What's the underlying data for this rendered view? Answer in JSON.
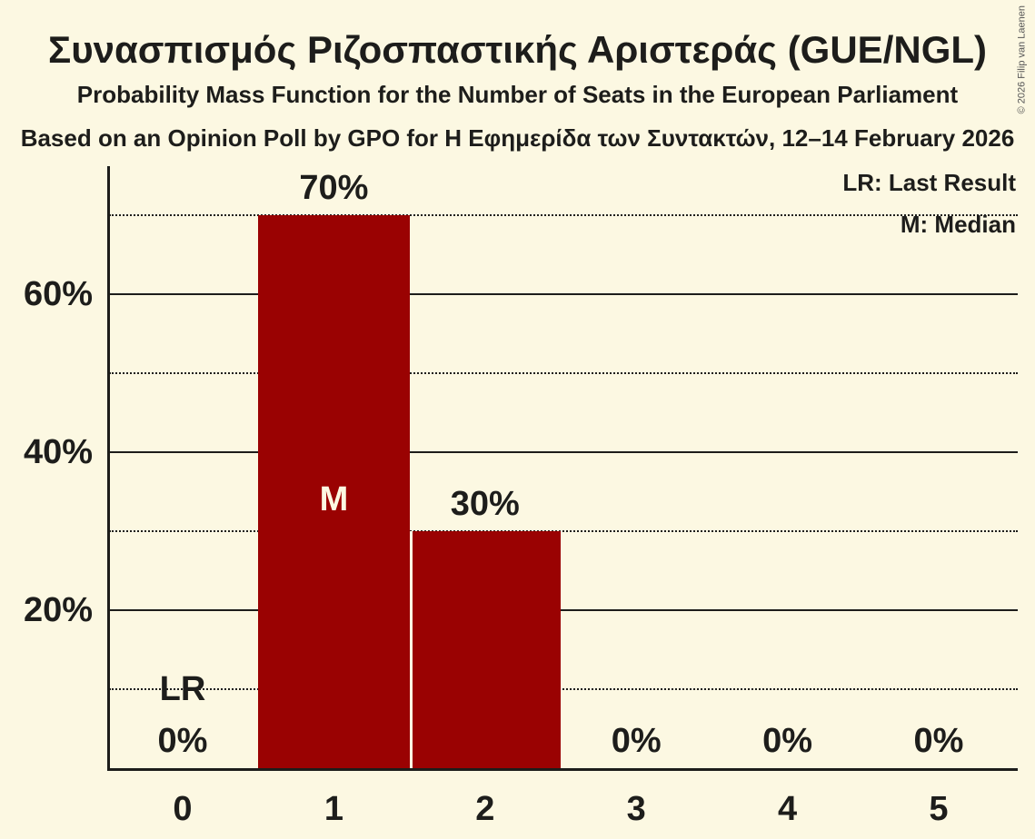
{
  "colors": {
    "background": "#FCF8E2",
    "bar": "#9A0202",
    "text": "#1D1D1B",
    "copyright_text": "#555555"
  },
  "chart_data": {
    "type": "bar",
    "title": "Συνασπισμός Ριζοσπαστικής Αριστεράς (GUE/NGL)",
    "subtitle": "Probability Mass Function for the Number of Seats in the European Parliament",
    "source_line": "Based on an Opinion Poll by GPO for Η Εφημερίδα των Συντακτών, 12–14 February 2026",
    "copyright": "© 2026 Filip van Laenen",
    "categories": [
      "0",
      "1",
      "2",
      "3",
      "4",
      "5"
    ],
    "values": [
      0,
      70,
      30,
      0,
      0,
      0
    ],
    "bar_labels": [
      "0%",
      "70%",
      "30%",
      "0%",
      "0%",
      "0%"
    ],
    "xlabel": "",
    "ylabel": "",
    "ylim": [
      0,
      76
    ],
    "yticks_solid": [
      {
        "pct": 20,
        "label": "20%"
      },
      {
        "pct": 40,
        "label": "40%"
      },
      {
        "pct": 60,
        "label": "60%"
      }
    ],
    "yticks_dotted": [
      10,
      30,
      50,
      70
    ],
    "grid": "horizontal",
    "legend_position": "top-right",
    "legend": [
      {
        "label": "LR: Last Result"
      },
      {
        "label": "M: Median"
      }
    ],
    "markers": [
      {
        "label": "LR",
        "category_index": 0,
        "at_pct": 10,
        "on_bar": false
      },
      {
        "label": "M",
        "category_index": 1,
        "at_pct": 34,
        "on_bar": true
      }
    ]
  }
}
